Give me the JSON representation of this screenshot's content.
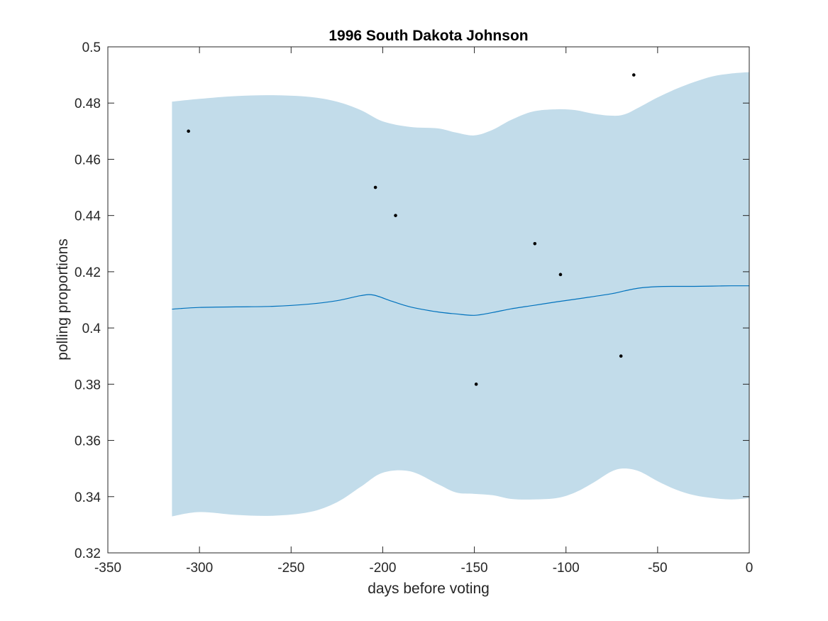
{
  "chart_data": {
    "type": "line",
    "title": "1996 South Dakota Johnson",
    "xlabel": "days before voting",
    "ylabel": "polling proportions",
    "xlim": [
      -350,
      0
    ],
    "ylim": [
      0.32,
      0.5
    ],
    "xticks": [
      -350,
      -300,
      -250,
      -200,
      -150,
      -100,
      -50,
      0
    ],
    "yticks": [
      0.32,
      0.34,
      0.36,
      0.38,
      0.4,
      0.42,
      0.44,
      0.46,
      0.48,
      0.5
    ],
    "xtick_labels": [
      "-350",
      "-300",
      "-250",
      "-200",
      "-150",
      "-100",
      "-50",
      "0"
    ],
    "ytick_labels": [
      "0.32",
      "0.34",
      "0.36",
      "0.38",
      "0.4",
      "0.42",
      "0.44",
      "0.46",
      "0.48",
      "0.5"
    ],
    "grid": false,
    "box": true,
    "band": {
      "color": "#c2dcea",
      "x": [
        -315,
        -300,
        -280,
        -260,
        -240,
        -225,
        -212,
        -200,
        -185,
        -170,
        -160,
        -150,
        -140,
        -130,
        -118,
        -105,
        -95,
        -85,
        -75,
        -68,
        -60,
        -50,
        -40,
        -30,
        -20,
        -10,
        0
      ],
      "upper": [
        0.4805,
        0.4815,
        0.4825,
        0.4828,
        0.4822,
        0.4805,
        0.4775,
        0.4735,
        0.4715,
        0.471,
        0.4695,
        0.4685,
        0.4705,
        0.474,
        0.477,
        0.4778,
        0.4775,
        0.4762,
        0.4755,
        0.476,
        0.4785,
        0.482,
        0.485,
        0.4875,
        0.4895,
        0.4905,
        0.491
      ],
      "lower": [
        0.333,
        0.3345,
        0.3335,
        0.3332,
        0.3345,
        0.338,
        0.3435,
        0.3485,
        0.349,
        0.3445,
        0.3415,
        0.341,
        0.3405,
        0.3392,
        0.339,
        0.3395,
        0.3415,
        0.345,
        0.349,
        0.35,
        0.349,
        0.3455,
        0.3425,
        0.3405,
        0.3395,
        0.339,
        0.3395
      ]
    },
    "series": [
      {
        "color": "#0072bd",
        "x": [
          -315,
          -300,
          -280,
          -260,
          -240,
          -225,
          -212,
          -205,
          -195,
          -185,
          -170,
          -160,
          -150,
          -140,
          -130,
          -118,
          -105,
          -90,
          -75,
          -68,
          -60,
          -50,
          -40,
          -30,
          -20,
          -10,
          0
        ],
        "values": [
          0.4067,
          0.4073,
          0.4075,
          0.4077,
          0.4085,
          0.4097,
          0.4115,
          0.4117,
          0.4095,
          0.4075,
          0.4057,
          0.405,
          0.4045,
          0.4055,
          0.4068,
          0.408,
          0.4093,
          0.4107,
          0.4122,
          0.4132,
          0.4142,
          0.4147,
          0.4148,
          0.4148,
          0.4149,
          0.415,
          0.415
        ]
      }
    ],
    "points": {
      "color": "#000000",
      "x": [
        -306,
        -204,
        -193,
        -149,
        -117,
        -103,
        -70,
        -63
      ],
      "y": [
        0.47,
        0.45,
        0.44,
        0.38,
        0.43,
        0.419,
        0.39,
        0.49
      ]
    }
  }
}
